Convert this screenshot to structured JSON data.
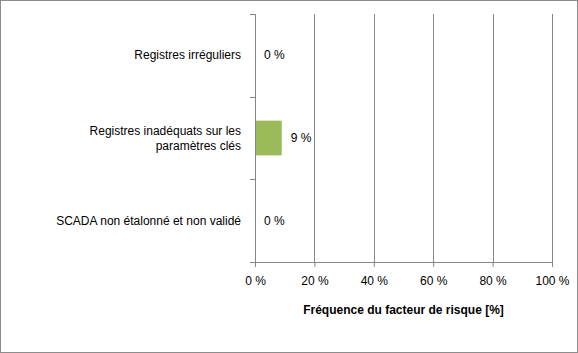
{
  "chart_data": {
    "type": "bar",
    "orientation": "horizontal",
    "categories": [
      "Registres irréguliers",
      "Registres inadéquats sur les paramètres clés",
      "SCADA non étalonné et non validé"
    ],
    "values": [
      0,
      9,
      0
    ],
    "value_labels": [
      "0 %",
      "9 %",
      "0 %"
    ],
    "data_labels": true,
    "color": "#9bbb59",
    "xlabel": "Fréquence du facteur de risque [%]",
    "xlim": [
      0,
      100
    ],
    "xticks": [
      {
        "value": 0,
        "label": "0 %"
      },
      {
        "value": 20,
        "label": "20 %"
      },
      {
        "value": 40,
        "label": "40 %"
      },
      {
        "value": 60,
        "label": "60 %"
      },
      {
        "value": 80,
        "label": "80 %"
      },
      {
        "value": 100,
        "label": "100 %"
      }
    ],
    "grid": true
  }
}
